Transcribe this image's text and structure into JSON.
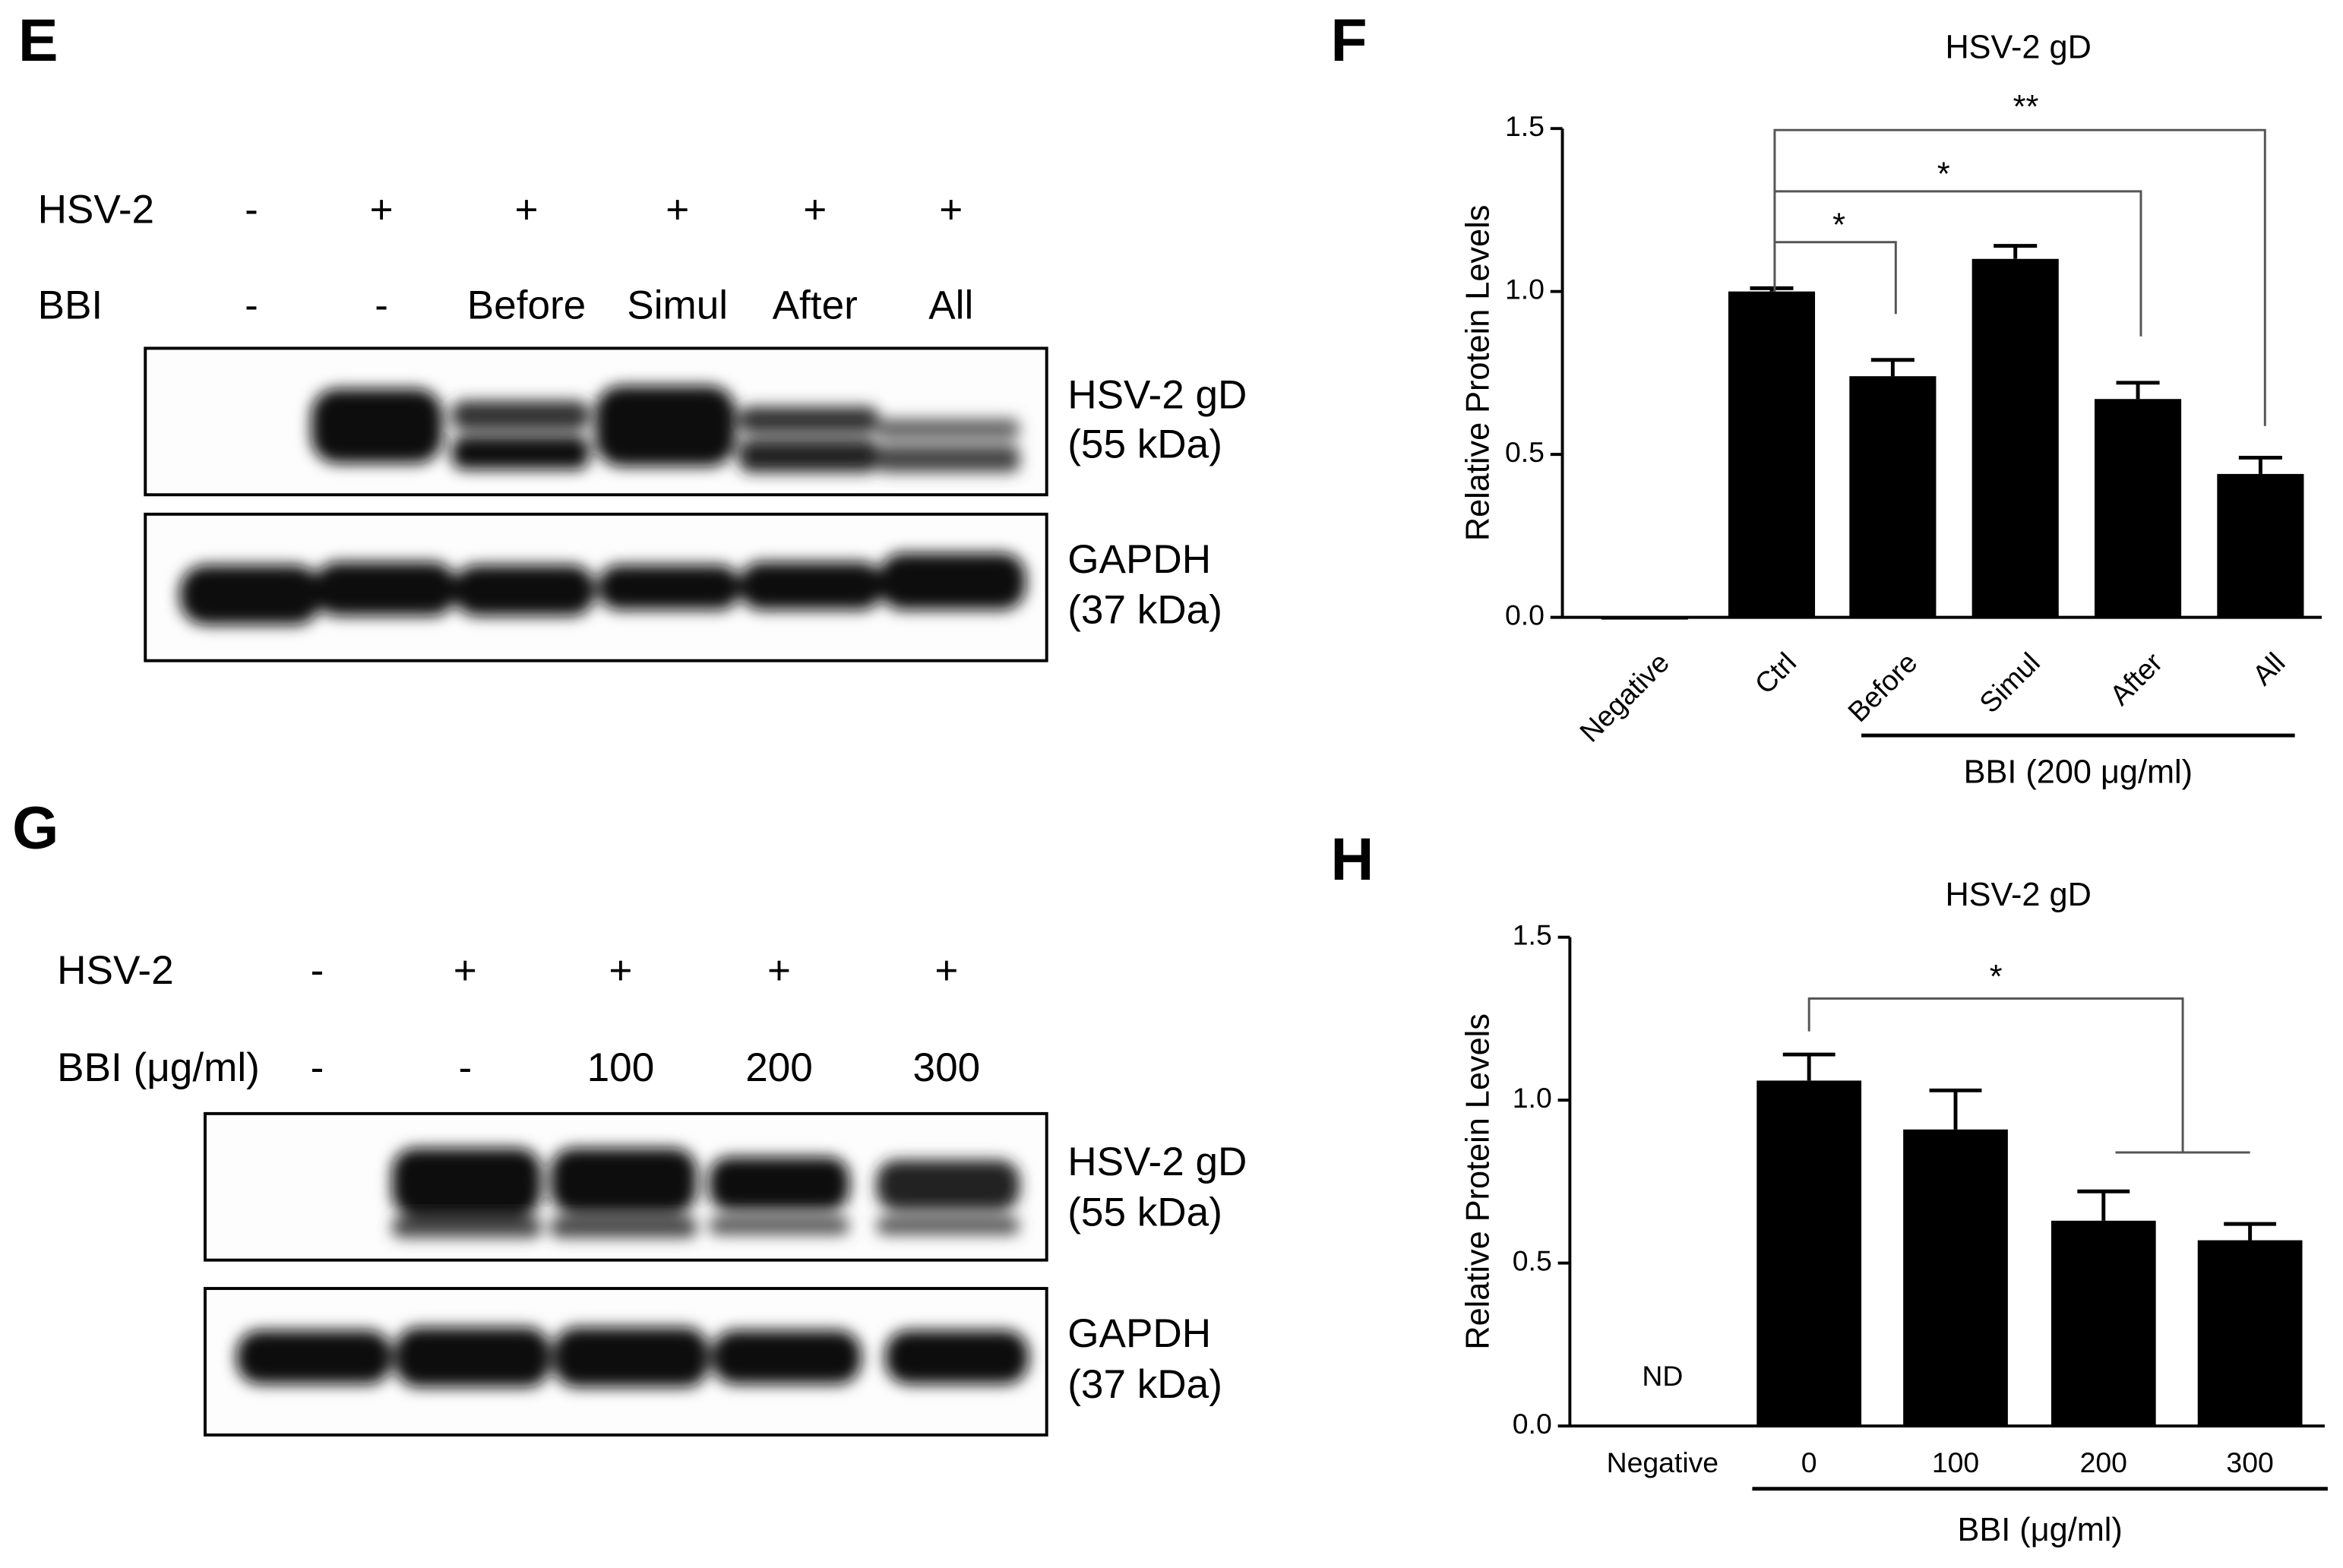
{
  "blots": [
    {
      "letter": "E",
      "rows": [
        {
          "label": "HSV-2",
          "cells": [
            "-",
            "+",
            "+",
            "+",
            "+",
            "+"
          ]
        },
        {
          "label": "BBI",
          "cells": [
            "-",
            "-",
            "Before",
            "Simul",
            "After",
            "All"
          ]
        }
      ],
      "bands": [
        {
          "name": "HSV-2 gD",
          "size": "(55 kDa)"
        },
        {
          "name": "GAPDH",
          "size": "(37 kDa)"
        }
      ]
    },
    {
      "letter": "G",
      "rows": [
        {
          "label": "HSV-2",
          "cells": [
            "-",
            "+",
            "+",
            "+",
            "+"
          ]
        },
        {
          "label": "BBI (μg/ml)",
          "cells": [
            "-",
            "-",
            "100",
            "200",
            "300"
          ]
        }
      ],
      "bands": [
        {
          "name": "HSV-2 gD",
          "size": "(55 kDa)"
        },
        {
          "name": "GAPDH",
          "size": "(37 kDa)"
        }
      ]
    }
  ],
  "chart_data": [
    {
      "type": "bar",
      "panel": "F",
      "title": "HSV-2 gD",
      "y_label": "Relative Protein Levels",
      "group_label": "BBI (200 μg/ml)",
      "categories": [
        "Negative",
        "Ctrl",
        "Before",
        "Simul",
        "After",
        "All"
      ],
      "values": [
        0,
        1.0,
        0.74,
        1.1,
        0.67,
        0.44
      ],
      "errors": [
        0,
        0.01,
        0.05,
        0.04,
        0.05,
        0.05
      ],
      "color": "#000000",
      "ylim": [
        0,
        1.5
      ],
      "yticks": [
        {
          "value": 0,
          "label": "0.0"
        },
        {
          "value": 0.5,
          "label": "0.5"
        },
        {
          "value": 1,
          "label": "1.0"
        },
        {
          "value": 1.5,
          "label": "1.5"
        }
      ],
      "annotations": [
        "*",
        "*",
        "**"
      ]
    },
    {
      "type": "bar",
      "panel": "H",
      "title": "HSV-2 gD",
      "y_label": "Relative Protein Levels",
      "group_label": "BBI (μg/ml)",
      "categories": [
        "Negative",
        "0",
        "100",
        "200",
        "300"
      ],
      "values": [
        null,
        1.06,
        0.91,
        0.63,
        0.57
      ],
      "errors": [
        null,
        0.08,
        0.12,
        0.09,
        0.05
      ],
      "value_labels": [
        "ND",
        null,
        null,
        null,
        null
      ],
      "color": "#000000",
      "ylim": [
        0,
        1.5
      ],
      "yticks": [
        {
          "value": 0,
          "label": "0.0"
        },
        {
          "value": 0.5,
          "label": "0.5"
        },
        {
          "value": 1,
          "label": "1.0"
        },
        {
          "value": 1.5,
          "label": "1.5"
        }
      ],
      "annotations": [
        "*"
      ]
    }
  ]
}
